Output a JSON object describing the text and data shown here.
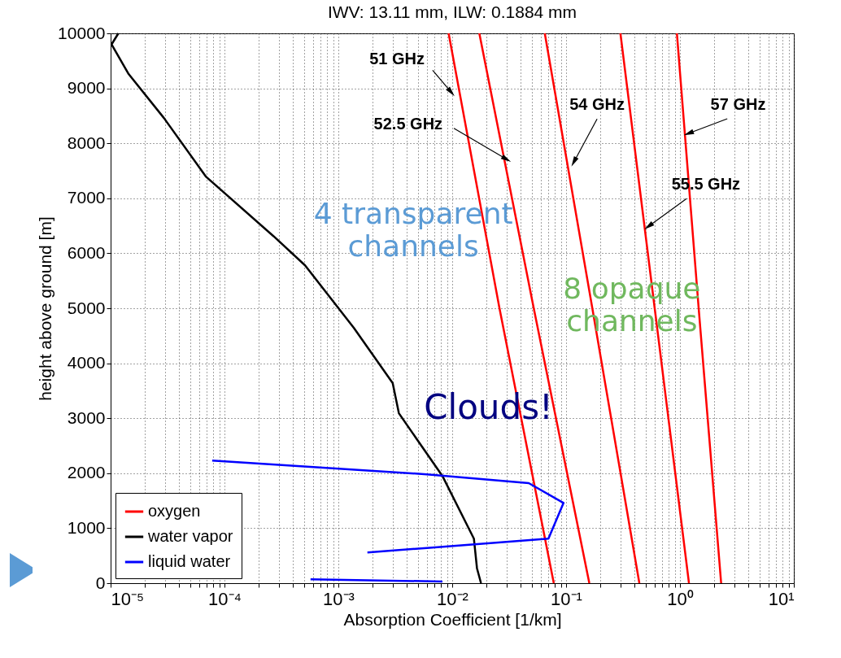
{
  "chart_data": {
    "type": "line",
    "title": "IWV: 13.11 mm, ILW: 0.1884 mm",
    "xlabel": "Absorption Coefficient [1/km]",
    "ylabel": "height above ground [m]",
    "log": "x",
    "grid": true,
    "legend": "bottom left",
    "marker": "none",
    "line_style": "solid",
    "xlim": [
      1e-05,
      10
    ],
    "ylim": [
      0,
      10000
    ],
    "xticks": [
      {
        "value": 1e-05,
        "label": "10⁻⁵"
      },
      {
        "value": 2e-05,
        "label": null
      },
      {
        "value": 3e-05,
        "label": null
      },
      {
        "value": 4e-05,
        "label": null
      },
      {
        "value": 5e-05,
        "label": null
      },
      {
        "value": 6e-05,
        "label": null
      },
      {
        "value": 7e-05,
        "label": null
      },
      {
        "value": 8e-05,
        "label": null
      },
      {
        "value": 9e-05,
        "label": null
      },
      {
        "value": 0.0001,
        "label": "10⁻⁴"
      },
      {
        "value": 0.0002,
        "label": null
      },
      {
        "value": 0.0003,
        "label": null
      },
      {
        "value": 0.0004,
        "label": null
      },
      {
        "value": 0.0005,
        "label": null
      },
      {
        "value": 0.0006,
        "label": null
      },
      {
        "value": 0.0007,
        "label": null
      },
      {
        "value": 0.0008,
        "label": null
      },
      {
        "value": 0.0009,
        "label": null
      },
      {
        "value": 0.001,
        "label": "10⁻³"
      },
      {
        "value": 0.002,
        "label": null
      },
      {
        "value": 0.003,
        "label": null
      },
      {
        "value": 0.004,
        "label": null
      },
      {
        "value": 0.005,
        "label": null
      },
      {
        "value": 0.006,
        "label": null
      },
      {
        "value": 0.007,
        "label": null
      },
      {
        "value": 0.008,
        "label": null
      },
      {
        "value": 0.009,
        "label": null
      },
      {
        "value": 0.01,
        "label": "10⁻²"
      },
      {
        "value": 0.02,
        "label": null
      },
      {
        "value": 0.03,
        "label": null
      },
      {
        "value": 0.04,
        "label": null
      },
      {
        "value": 0.05,
        "label": null
      },
      {
        "value": 0.06,
        "label": null
      },
      {
        "value": 0.07,
        "label": null
      },
      {
        "value": 0.08,
        "label": null
      },
      {
        "value": 0.09,
        "label": null
      },
      {
        "value": 0.1,
        "label": "10⁻¹"
      },
      {
        "value": 0.2,
        "label": null
      },
      {
        "value": 0.3,
        "label": null
      },
      {
        "value": 0.4,
        "label": null
      },
      {
        "value": 0.5,
        "label": null
      },
      {
        "value": 0.6,
        "label": null
      },
      {
        "value": 0.7,
        "label": null
      },
      {
        "value": 0.8,
        "label": null
      },
      {
        "value": 0.9,
        "label": null
      },
      {
        "value": 1,
        "label": "10⁰"
      },
      {
        "value": 2,
        "label": null
      },
      {
        "value": 3,
        "label": null
      },
      {
        "value": 4,
        "label": null
      },
      {
        "value": 5,
        "label": null
      },
      {
        "value": 6,
        "label": null
      },
      {
        "value": 7,
        "label": null
      },
      {
        "value": 8,
        "label": null
      },
      {
        "value": 9,
        "label": null
      },
      {
        "value": 10,
        "label": "10¹"
      }
    ],
    "yticks": [
      0,
      1000,
      2000,
      3000,
      4000,
      5000,
      6000,
      7000,
      8000,
      9000,
      10000
    ],
    "series": [
      {
        "name": "oxygen",
        "color": "#ff0000",
        "x": [
          0.0093,
          0.026,
          0.078
        ],
        "values": [
          10000,
          5000,
          0
        ]
      },
      {
        "color": "#ff0000",
        "x": [
          0.0173,
          0.052,
          0.16
        ],
        "values": [
          10000,
          5000,
          0
        ]
      },
      {
        "color": "#ff0000",
        "x": [
          0.065,
          0.17,
          0.44
        ],
        "values": [
          10000,
          5000,
          0
        ]
      },
      {
        "color": "#ff0000",
        "x": [
          0.3,
          0.6,
          1.2
        ],
        "values": [
          10000,
          5000,
          0
        ]
      },
      {
        "color": "#ff0000",
        "x": [
          0.94,
          1.46,
          2.3
        ],
        "values": [
          10000,
          5000,
          0
        ]
      },
      {
        "name": "water vapor",
        "color": "#000000",
        "x": [
          1.17e-05,
          1.02e-05,
          1.44e-05,
          2.94e-05,
          6.9e-05,
          0.00027,
          0.00051,
          0.00137,
          0.003,
          0.0034,
          0.0082,
          0.0155,
          0.0165,
          0.0179
        ],
        "values": [
          10000,
          9800,
          9260,
          8460,
          7390,
          6310,
          5780,
          4640,
          3640,
          3090,
          1950,
          810,
          270,
          0
        ]
      },
      {
        "name": "liquid water",
        "color": "#0000ff",
        "x": [
          7.8e-05,
          0.006,
          0.047,
          0.095,
          0.07,
          0.006,
          0.0018,
          null,
          0.00057,
          0.0082
        ],
        "values": [
          2230,
          1980,
          1820,
          1460,
          810,
          640,
          560,
          null,
          70,
          30
        ]
      }
    ],
    "annotations": [
      {
        "text": "51 GHz",
        "x": 0.0098,
        "y": 8930
      },
      {
        "text": "52.5 GHz",
        "x": 0.03,
        "y": 7710
      },
      {
        "text": "54 GHz",
        "x": 0.117,
        "y": 7660
      },
      {
        "text": "55.5 GHz",
        "x": 0.53,
        "y": 6490
      },
      {
        "text": "57 GHz",
        "x": 1.19,
        "y": 8180
      },
      "4 transparent channels",
      "8 opaque channels",
      "Clouds!"
    ]
  }
}
